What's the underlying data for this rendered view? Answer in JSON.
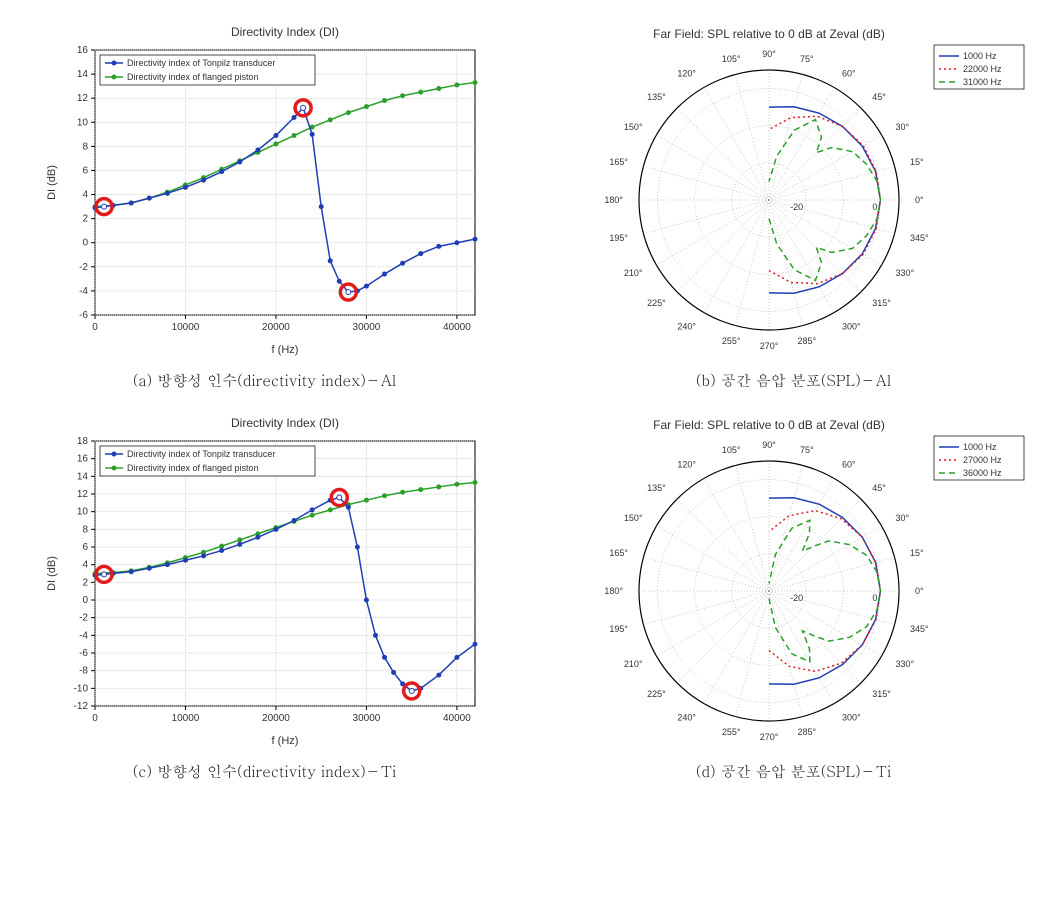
{
  "charts": {
    "a": {
      "caption": "(a) 방향성 인수(directivity index)－Al",
      "title": "Directivity Index (DI)",
      "xlabel": "f (Hz)",
      "ylabel": "DI (dB)",
      "xlim": [
        0,
        42000
      ],
      "ylim": [
        -6,
        16
      ],
      "xticks": [
        0,
        10000,
        20000,
        30000,
        40000
      ],
      "yticks": [
        -6,
        -4,
        -2,
        0,
        2,
        4,
        6,
        8,
        10,
        12,
        14,
        16
      ],
      "legend": [
        "Directivity index of Tonpilz transducer",
        "Directivity index of flanged piston"
      ],
      "series_colors": [
        "#1f3db5",
        "#2aa02a"
      ],
      "tonpilz": {
        "x": [
          0,
          1000,
          2000,
          4000,
          6000,
          8000,
          10000,
          12000,
          14000,
          16000,
          18000,
          20000,
          22000,
          23000,
          24000,
          25000,
          26000,
          27000,
          28000,
          29000,
          30000,
          32000,
          34000,
          36000,
          38000,
          40000,
          42000
        ],
        "y": [
          2.9,
          3.0,
          3.1,
          3.3,
          3.7,
          4.1,
          4.6,
          5.2,
          5.9,
          6.7,
          7.7,
          8.9,
          10.4,
          11.2,
          9.0,
          3.0,
          -1.5,
          -3.2,
          -4.1,
          -4.0,
          -3.6,
          -2.6,
          -1.7,
          -0.9,
          -0.3,
          0.0,
          0.3
        ]
      },
      "piston": {
        "x": [
          0,
          2000,
          4000,
          6000,
          8000,
          10000,
          12000,
          14000,
          16000,
          18000,
          20000,
          22000,
          24000,
          26000,
          28000,
          30000,
          32000,
          34000,
          36000,
          38000,
          40000,
          42000
        ],
        "y": [
          3.0,
          3.1,
          3.3,
          3.7,
          4.2,
          4.8,
          5.4,
          6.1,
          6.8,
          7.5,
          8.2,
          8.9,
          9.6,
          10.2,
          10.8,
          11.3,
          11.8,
          12.2,
          12.5,
          12.8,
          13.1,
          13.3
        ]
      },
      "markers": [
        {
          "x": 1000,
          "y": 3.0
        },
        {
          "x": 23000,
          "y": 11.2
        },
        {
          "x": 28000,
          "y": -4.1
        }
      ],
      "marker_color": "#e31a1c"
    },
    "c": {
      "caption": "(c) 방향성 인수(directivity index)－Ti",
      "title": "Directivity Index (DI)",
      "xlabel": "f (Hz)",
      "ylabel": "DI (dB)",
      "xlim": [
        0,
        42000
      ],
      "ylim": [
        -12,
        18
      ],
      "xticks": [
        0,
        10000,
        20000,
        30000,
        40000
      ],
      "yticks": [
        -12,
        -10,
        -8,
        -6,
        -4,
        -2,
        0,
        2,
        4,
        6,
        8,
        10,
        12,
        14,
        16,
        18
      ],
      "legend": [
        "Directivity index of Tonpilz transducer",
        "Directivity index of flanged piston"
      ],
      "series_colors": [
        "#1f3db5",
        "#2aa02a"
      ],
      "tonpilz": {
        "x": [
          0,
          1000,
          2000,
          4000,
          6000,
          8000,
          10000,
          12000,
          14000,
          16000,
          18000,
          20000,
          22000,
          24000,
          26000,
          27000,
          28000,
          29000,
          30000,
          31000,
          32000,
          33000,
          34000,
          35000,
          36000,
          38000,
          40000,
          42000
        ],
        "y": [
          2.8,
          2.9,
          3.0,
          3.2,
          3.6,
          4.0,
          4.5,
          5.0,
          5.6,
          6.3,
          7.1,
          8.0,
          9.0,
          10.2,
          11.3,
          11.6,
          10.5,
          6.0,
          0.0,
          -4.0,
          -6.5,
          -8.2,
          -9.5,
          -10.3,
          -10.0,
          -8.5,
          -6.5,
          -5.0
        ]
      },
      "piston": {
        "x": [
          0,
          2000,
          4000,
          6000,
          8000,
          10000,
          12000,
          14000,
          16000,
          18000,
          20000,
          22000,
          24000,
          26000,
          28000,
          30000,
          32000,
          34000,
          36000,
          38000,
          40000,
          42000
        ],
        "y": [
          3.0,
          3.1,
          3.3,
          3.7,
          4.2,
          4.8,
          5.4,
          6.1,
          6.8,
          7.5,
          8.2,
          8.9,
          9.6,
          10.2,
          10.8,
          11.3,
          11.8,
          12.2,
          12.5,
          12.8,
          13.1,
          13.3
        ]
      },
      "markers": [
        {
          "x": 1000,
          "y": 2.9
        },
        {
          "x": 27000,
          "y": 11.6
        },
        {
          "x": 35000,
          "y": -10.3
        }
      ],
      "marker_color": "#e31a1c"
    },
    "b": {
      "caption": "(b) 공간 음압 분포(SPL)－Al",
      "title": "Far Field: SPL relative to 0 dB at Zeval (dB)",
      "legend": [
        "1000 Hz",
        "22000 Hz",
        "31000 Hz"
      ],
      "legend_colors": [
        "#1f3db5",
        "#e31a1c",
        "#2aa02a"
      ],
      "legend_dash": [
        "solid",
        "dot",
        "dash"
      ],
      "angle_labels": [
        0,
        15,
        30,
        45,
        60,
        75,
        90,
        105,
        120,
        135,
        150,
        165,
        180,
        195,
        210,
        225,
        240,
        255,
        270,
        285,
        300,
        315,
        330,
        345
      ],
      "rticks": [
        -20,
        0
      ],
      "rmax": 5,
      "series": {
        "s1": {
          "color": "#1f3db5",
          "dash": "solid",
          "theta": [
            -90,
            -75,
            -60,
            -45,
            -30,
            -15,
            0,
            15,
            30,
            45,
            60,
            75,
            90
          ],
          "r": [
            -5,
            -4,
            -3,
            -2,
            -1,
            -0.3,
            0,
            -0.3,
            -1,
            -2,
            -3,
            -4,
            -5
          ]
        },
        "s2": {
          "color": "#e31a1c",
          "dash": "dot",
          "theta": [
            -90,
            -75,
            -60,
            -45,
            -30,
            -15,
            0,
            15,
            30,
            45,
            60,
            75,
            90
          ],
          "r": [
            -11,
            -7,
            -4,
            -2,
            -0.7,
            -0.15,
            0,
            -0.15,
            -0.7,
            -2,
            -4,
            -7,
            -11
          ]
        },
        "s3": {
          "color": "#2aa02a",
          "dash": "dash",
          "theta": [
            -90,
            -80,
            -70,
            -60,
            -50,
            -45,
            -40,
            -30,
            -20,
            -10,
            0,
            10,
            20,
            30,
            40,
            45,
            50,
            60,
            70,
            80,
            90
          ],
          "r": [
            -25,
            -18,
            -10,
            -5,
            -8,
            -12,
            -8,
            -4,
            -2,
            -0.5,
            0,
            -0.5,
            -2,
            -4,
            -8,
            -12,
            -8,
            -5,
            -10,
            -18,
            -25
          ]
        }
      }
    },
    "d": {
      "caption": "(d) 공간 음압 분포(SPL)－Ti",
      "title": "Far Field: SPL relative to 0 dB at Zeval (dB)",
      "legend": [
        "1000 Hz",
        "27000 Hz",
        "36000 Hz"
      ],
      "legend_colors": [
        "#1f3db5",
        "#e31a1c",
        "#2aa02a"
      ],
      "legend_dash": [
        "solid",
        "dot",
        "dash"
      ],
      "angle_labels": [
        0,
        15,
        30,
        45,
        60,
        75,
        90,
        105,
        120,
        135,
        150,
        165,
        180,
        195,
        210,
        225,
        240,
        255,
        270,
        285,
        300,
        315,
        330,
        345
      ],
      "rticks": [
        -20,
        0
      ],
      "rmax": 5,
      "series": {
        "s1": {
          "color": "#1f3db5",
          "dash": "solid",
          "theta": [
            -90,
            -75,
            -60,
            -45,
            -30,
            -15,
            0,
            15,
            30,
            45,
            60,
            75,
            90
          ],
          "r": [
            -5,
            -4,
            -3,
            -2,
            -1,
            -0.3,
            0,
            -0.3,
            -1,
            -2,
            -3,
            -4,
            -5
          ]
        },
        "s2": {
          "color": "#e31a1c",
          "dash": "dot",
          "theta": [
            -90,
            -75,
            -60,
            -45,
            -30,
            -15,
            0,
            15,
            30,
            45,
            60,
            75,
            90
          ],
          "r": [
            -14,
            -9,
            -5,
            -2.5,
            -1,
            -0.2,
            0,
            -0.2,
            -1,
            -2.5,
            -5,
            -9,
            -14
          ]
        },
        "s3": {
          "color": "#2aa02a",
          "dash": "dash",
          "theta": [
            -90,
            -80,
            -70,
            -60,
            -55,
            -50,
            -45,
            -40,
            -30,
            -20,
            -10,
            0,
            10,
            20,
            30,
            40,
            45,
            50,
            55,
            60,
            70,
            80,
            90
          ],
          "r": [
            -28,
            -20,
            -12,
            -8,
            -11,
            -16,
            -13,
            -9,
            -5,
            -2,
            -0.5,
            0,
            -0.5,
            -2,
            -5,
            -9,
            -13,
            -16,
            -11,
            -8,
            -12,
            -20,
            -28
          ]
        }
      }
    }
  }
}
